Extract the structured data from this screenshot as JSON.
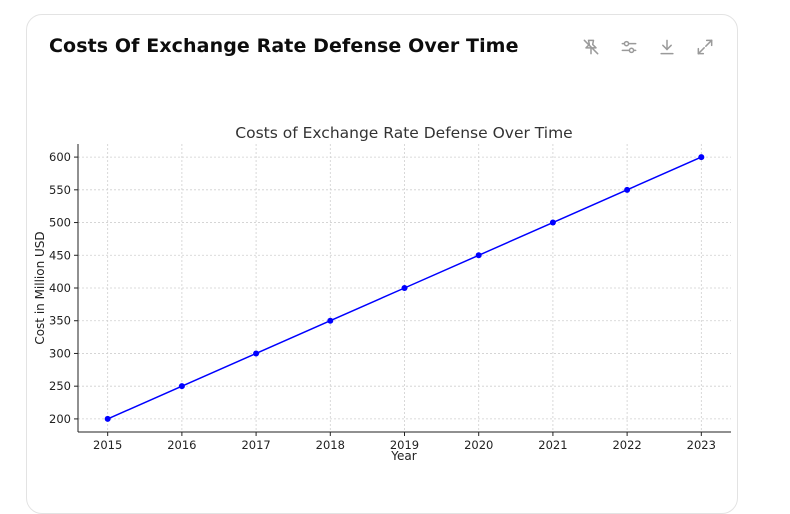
{
  "card": {
    "title": "Costs Of Exchange Rate Defense Over Time",
    "toolbar": [
      {
        "icon": "pin-off-icon"
      },
      {
        "icon": "sliders-icon"
      },
      {
        "icon": "download-icon"
      },
      {
        "icon": "expand-icon"
      }
    ]
  },
  "chart_data": {
    "type": "line",
    "title": "Costs of Exchange Rate Defense Over Time",
    "xlabel": "Year",
    "ylabel": "Cost in Million USD",
    "x": [
      2015,
      2016,
      2017,
      2018,
      2019,
      2020,
      2021,
      2022,
      2023
    ],
    "series": [
      {
        "values": [
          200,
          250,
          300,
          350,
          400,
          450,
          500,
          550,
          600
        ],
        "color": "#0000ff",
        "marker": "circle"
      }
    ],
    "yticks": [
      200,
      250,
      300,
      350,
      400,
      450,
      500,
      550,
      600
    ],
    "ylim": [
      180,
      620
    ],
    "xlim": [
      2014.6,
      2023.4
    ],
    "grid": true
  }
}
